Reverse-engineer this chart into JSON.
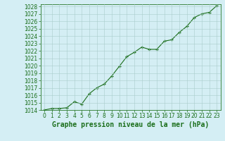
{
  "x": [
    0,
    1,
    2,
    3,
    4,
    5,
    6,
    7,
    8,
    9,
    10,
    11,
    12,
    13,
    14,
    15,
    16,
    17,
    18,
    19,
    20,
    21,
    22,
    23
  ],
  "y": [
    1014.0,
    1014.2,
    1014.2,
    1014.3,
    1015.1,
    1014.8,
    1016.2,
    1017.0,
    1017.5,
    1018.6,
    1019.9,
    1021.2,
    1021.8,
    1022.5,
    1022.2,
    1022.2,
    1023.3,
    1023.5,
    1024.5,
    1025.3,
    1026.5,
    1027.0,
    1027.2,
    1028.1
  ],
  "line_color": "#1a6e1a",
  "marker": "+",
  "bg_color": "#d4eef4",
  "grid_color": "#aacccc",
  "label": "Graphe pression niveau de la mer (hPa)",
  "ylim_min": 1014,
  "ylim_max": 1028,
  "ytick_step": 1,
  "xlim_min": 0,
  "xlim_max": 23,
  "label_fontsize": 7,
  "tick_fontsize": 5.5,
  "label_color": "#1a6e1a",
  "spine_color": "#2a7a2a"
}
